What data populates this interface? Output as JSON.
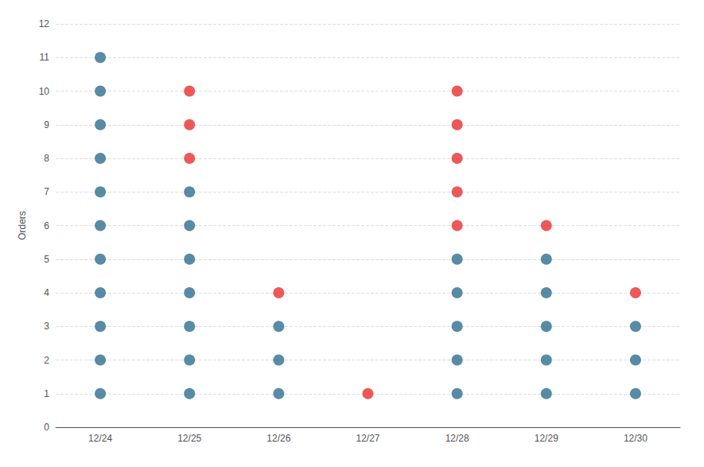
{
  "chart_data": {
    "type": "scatter",
    "categories": [
      "12/24",
      "12/25",
      "12/26",
      "12/27",
      "12/28",
      "12/29",
      "12/30"
    ],
    "series": [
      {
        "color": "#2e6e8e",
        "values": [
          [
            1,
            2,
            3,
            4,
            5,
            6,
            7,
            8,
            9,
            10,
            11
          ],
          [
            1,
            2,
            3,
            4,
            5,
            6,
            7
          ],
          [
            1,
            2,
            3
          ],
          [],
          [
            1,
            2,
            3,
            4,
            5
          ],
          [
            1,
            2,
            3,
            4,
            5
          ],
          [
            1,
            2,
            3
          ]
        ]
      },
      {
        "color": "#e83030",
        "values": [
          [],
          [
            8,
            9,
            10
          ],
          [
            4
          ],
          [
            1
          ],
          [
            6,
            7,
            8,
            9,
            10
          ],
          [
            6
          ],
          [
            4
          ]
        ]
      }
    ],
    "ylabel": "Orders",
    "ylim": [
      0,
      12
    ],
    "yticks": [
      0,
      1,
      2,
      3,
      4,
      5,
      6,
      7,
      8,
      9,
      10,
      11,
      12
    ],
    "grid": true
  }
}
